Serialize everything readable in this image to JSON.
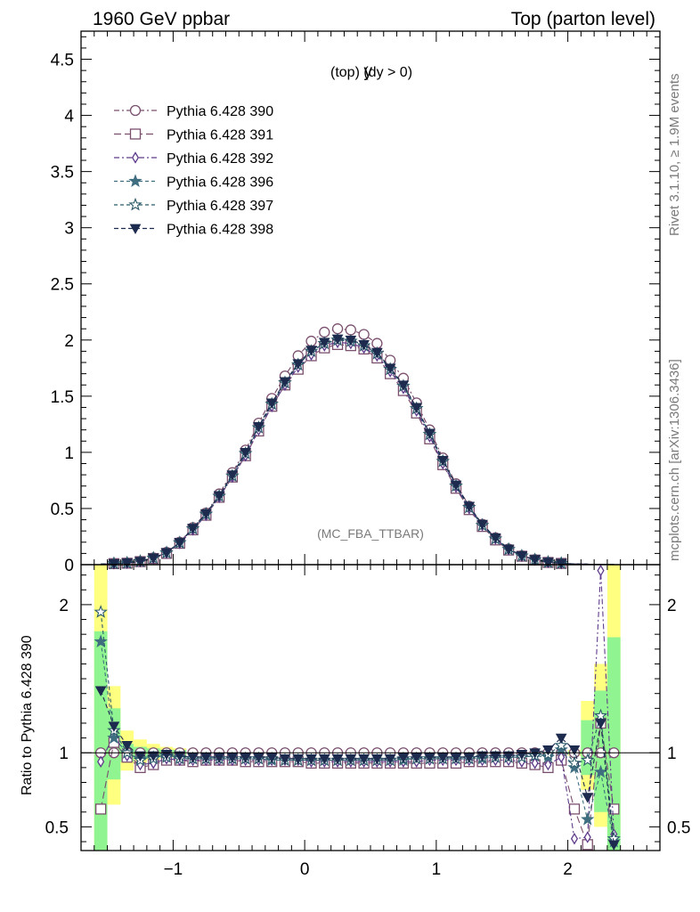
{
  "header": {
    "left": "1960 GeV ppbar",
    "right": "Top (parton level)"
  },
  "side": {
    "rivet": "Rivet 3.1.10, ≥ 1.9M events",
    "mcplots": "mcplots.cern.ch [arXiv:1306.3436]"
  },
  "chart_data": {
    "type": "line",
    "title": "y (top) (dy > 0)",
    "title_main": "y",
    "title_sub": "(top) (dy > 0)",
    "analysis_tag": "(MC_FBA_TTBAR)",
    "x": [
      -1.55,
      -1.45,
      -1.35,
      -1.25,
      -1.15,
      -1.05,
      -0.95,
      -0.85,
      -0.75,
      -0.65,
      -0.55,
      -0.45,
      -0.35,
      -0.25,
      -0.15,
      -0.05,
      0.05,
      0.15,
      0.25,
      0.35,
      0.45,
      0.55,
      0.65,
      0.75,
      0.85,
      0.95,
      1.05,
      1.15,
      1.25,
      1.35,
      1.45,
      1.55,
      1.65,
      1.75,
      1.85,
      1.95,
      2.05,
      2.15,
      2.25,
      2.35
    ],
    "xlim": [
      -1.7,
      2.7
    ],
    "main_ylim": [
      0,
      4.75
    ],
    "main_yticks": [
      0,
      0.5,
      1,
      1.5,
      2,
      2.5,
      3,
      3.5,
      4,
      4.5
    ],
    "main_ytick_labels": [
      "0",
      "0.5",
      "1",
      "1.5",
      "2",
      "2.5",
      "3",
      "3.5",
      "4",
      "4.5"
    ],
    "xticks": [
      -1,
      0,
      1,
      2
    ],
    "xtick_labels": [
      "−1",
      "0",
      "1",
      "2"
    ],
    "ratio_ylabel": "Ratio to Pythia 6.428 390",
    "ratio_ylim": [
      0.34,
      2.27
    ],
    "ratio_yticks": [
      0.5,
      1,
      2
    ],
    "ratio_ytick_labels": [
      "0.5",
      "1",
      "2"
    ],
    "series": [
      {
        "name": "Pythia 6.428 390",
        "color": "#7a4f6e",
        "marker": "circle-open",
        "values": [
          0.005,
          0.01,
          0.015,
          0.03,
          0.06,
          0.11,
          0.2,
          0.33,
          0.46,
          0.63,
          0.82,
          1.02,
          1.26,
          1.48,
          1.68,
          1.86,
          1.99,
          2.07,
          2.1,
          2.09,
          2.05,
          1.97,
          1.82,
          1.66,
          1.44,
          1.2,
          0.95,
          0.72,
          0.52,
          0.36,
          0.24,
          0.14,
          0.08,
          0.045,
          0.022,
          0.012,
          0.006,
          0.004,
          0.002,
          0.001
        ],
        "ratio": [
          1,
          1,
          1,
          1,
          1,
          1,
          1,
          1,
          1,
          1,
          1,
          1,
          1,
          1,
          1,
          1,
          1,
          1,
          1,
          1,
          1,
          1,
          1,
          1,
          1,
          1,
          1,
          1,
          1,
          1,
          1,
          1,
          1,
          1,
          1,
          1,
          1,
          1,
          1,
          1
        ]
      },
      {
        "name": "Pythia 6.428 391",
        "color": "#7a4f6e",
        "marker": "square-open",
        "values": [
          0.003,
          0.009,
          0.013,
          0.027,
          0.055,
          0.1,
          0.19,
          0.31,
          0.44,
          0.6,
          0.78,
          0.97,
          1.19,
          1.41,
          1.6,
          1.74,
          1.86,
          1.93,
          1.96,
          1.95,
          1.92,
          1.84,
          1.7,
          1.55,
          1.35,
          1.12,
          0.89,
          0.68,
          0.49,
          0.34,
          0.22,
          0.13,
          0.075,
          0.041,
          0.02,
          0.011,
          0.005,
          0.0035,
          0.0018,
          0.0008
        ],
        "ratio": [
          0.62,
          1.07,
          0.97,
          0.9,
          0.92,
          0.95,
          0.95,
          0.94,
          0.95,
          0.95,
          0.95,
          0.94,
          0.94,
          0.94,
          0.94,
          0.94,
          0.93,
          0.93,
          0.93,
          0.93,
          0.93,
          0.93,
          0.93,
          0.93,
          0.93,
          0.93,
          0.93,
          0.93,
          0.94,
          0.94,
          0.94,
          0.94,
          0.93,
          0.92,
          0.9,
          0.95,
          0.62,
          0.38,
          1.2,
          0.62
        ]
      },
      {
        "name": "Pythia 6.428 392",
        "color": "#5e3a8a",
        "marker": "diamond-open",
        "values": [
          0.004,
          0.009,
          0.014,
          0.028,
          0.057,
          0.104,
          0.19,
          0.31,
          0.44,
          0.6,
          0.78,
          0.97,
          1.2,
          1.41,
          1.6,
          1.76,
          1.87,
          1.95,
          1.98,
          1.97,
          1.93,
          1.86,
          1.72,
          1.57,
          1.37,
          1.14,
          0.9,
          0.69,
          0.5,
          0.35,
          0.23,
          0.135,
          0.076,
          0.042,
          0.021,
          0.011,
          0.0055,
          0.0036,
          0.0019,
          0.0009
        ],
        "ratio": [
          0.94,
          1.12,
          0.98,
          0.92,
          0.93,
          0.96,
          0.95,
          0.95,
          0.95,
          0.95,
          0.95,
          0.95,
          0.95,
          0.95,
          0.95,
          0.95,
          0.94,
          0.94,
          0.94,
          0.94,
          0.94,
          0.94,
          0.94,
          0.94,
          0.94,
          0.95,
          0.95,
          0.95,
          0.95,
          0.95,
          0.95,
          0.95,
          0.94,
          0.93,
          0.92,
          0.97,
          0.42,
          0.43,
          2.23,
          0.45
        ]
      },
      {
        "name": "Pythia 6.428 396",
        "color": "#3f6e80",
        "marker": "star-filled",
        "values": [
          0.004,
          0.01,
          0.015,
          0.029,
          0.059,
          0.106,
          0.195,
          0.32,
          0.45,
          0.61,
          0.79,
          0.99,
          1.22,
          1.43,
          1.62,
          1.78,
          1.9,
          1.97,
          2.0,
          1.99,
          1.95,
          1.88,
          1.74,
          1.59,
          1.39,
          1.16,
          0.92,
          0.7,
          0.51,
          0.35,
          0.23,
          0.136,
          0.078,
          0.044,
          0.022,
          0.012,
          0.0058,
          0.0038,
          0.002,
          0.001
        ],
        "ratio": [
          1.75,
          1.1,
          1.0,
          0.96,
          0.97,
          0.98,
          0.97,
          0.96,
          0.96,
          0.96,
          0.96,
          0.96,
          0.96,
          0.95,
          0.95,
          0.95,
          0.95,
          0.95,
          0.95,
          0.95,
          0.95,
          0.95,
          0.95,
          0.95,
          0.96,
          0.96,
          0.96,
          0.96,
          0.96,
          0.96,
          0.97,
          0.97,
          0.97,
          0.98,
          0.97,
          1.02,
          0.9,
          0.55,
          0.87,
          0.4
        ]
      },
      {
        "name": "Pythia 6.428 397",
        "color": "#2a5a6a",
        "marker": "star-open",
        "values": [
          0.004,
          0.01,
          0.015,
          0.029,
          0.059,
          0.106,
          0.196,
          0.32,
          0.45,
          0.61,
          0.79,
          0.99,
          1.22,
          1.43,
          1.62,
          1.78,
          1.9,
          1.97,
          2.0,
          1.99,
          1.95,
          1.88,
          1.74,
          1.59,
          1.39,
          1.16,
          0.92,
          0.7,
          0.51,
          0.35,
          0.23,
          0.136,
          0.078,
          0.044,
          0.022,
          0.012,
          0.0058,
          0.0038,
          0.002,
          0.001
        ],
        "ratio": [
          1.95,
          1.15,
          1.0,
          0.95,
          0.96,
          0.97,
          0.96,
          0.96,
          0.96,
          0.96,
          0.96,
          0.96,
          0.96,
          0.96,
          0.95,
          0.95,
          0.95,
          0.95,
          0.95,
          0.95,
          0.95,
          0.95,
          0.95,
          0.96,
          0.96,
          0.96,
          0.96,
          0.96,
          0.96,
          0.97,
          0.97,
          0.97,
          0.97,
          0.98,
          0.99,
          1.05,
          0.93,
          0.95,
          1.25,
          0.42
        ]
      },
      {
        "name": "Pythia 6.428 398",
        "color": "#1d2b4f",
        "marker": "triangle-down-filled",
        "values": [
          0.004,
          0.01,
          0.016,
          0.03,
          0.06,
          0.108,
          0.198,
          0.325,
          0.455,
          0.615,
          0.8,
          1.0,
          1.23,
          1.44,
          1.63,
          1.79,
          1.91,
          1.98,
          2.01,
          2.0,
          1.96,
          1.89,
          1.75,
          1.6,
          1.4,
          1.17,
          0.93,
          0.71,
          0.52,
          0.36,
          0.24,
          0.14,
          0.08,
          0.046,
          0.023,
          0.0125,
          0.006,
          0.004,
          0.002,
          0.001
        ],
        "ratio": [
          1.42,
          1.18,
          1.05,
          0.98,
          0.98,
          0.99,
          0.98,
          0.97,
          0.97,
          0.97,
          0.97,
          0.97,
          0.97,
          0.97,
          0.96,
          0.96,
          0.96,
          0.96,
          0.96,
          0.96,
          0.96,
          0.96,
          0.96,
          0.97,
          0.97,
          0.97,
          0.97,
          0.97,
          0.97,
          0.98,
          0.98,
          0.98,
          0.99,
          1.0,
          1.02,
          1.1,
          1.02,
          0.7,
          1.2,
          0.38
        ]
      }
    ],
    "bands": {
      "x_edges": [
        -1.6,
        -1.5,
        -1.4,
        -1.3,
        -1.2,
        -1.1,
        -1.0,
        -0.9,
        2.0,
        2.1,
        2.2,
        2.3,
        2.4
      ],
      "yellow": [
        [
          0.34,
          2.27
        ],
        [
          0.65,
          1.45
        ],
        [
          0.88,
          1.15
        ],
        [
          0.93,
          1.09
        ],
        [
          0.95,
          1.06
        ],
        [
          0.97,
          1.04
        ],
        [
          0.97,
          1.03
        ],
        [
          0.98,
          1.02
        ],
        [
          0.75,
          1.35
        ],
        [
          0.5,
          1.6
        ],
        [
          0.45,
          2.27
        ],
        [
          0.34,
          2.27
        ]
      ],
      "green": [
        [
          0.34,
          1.82
        ],
        [
          0.82,
          1.3
        ],
        [
          0.94,
          1.06
        ],
        [
          0.96,
          1.04
        ],
        [
          0.97,
          1.03
        ],
        [
          0.98,
          1.02
        ],
        [
          0.98,
          1.02
        ],
        [
          0.99,
          1.01
        ],
        [
          0.85,
          1.22
        ],
        [
          0.6,
          1.42
        ],
        [
          0.34,
          1.78
        ],
        [
          0.34,
          1.78
        ]
      ]
    }
  }
}
